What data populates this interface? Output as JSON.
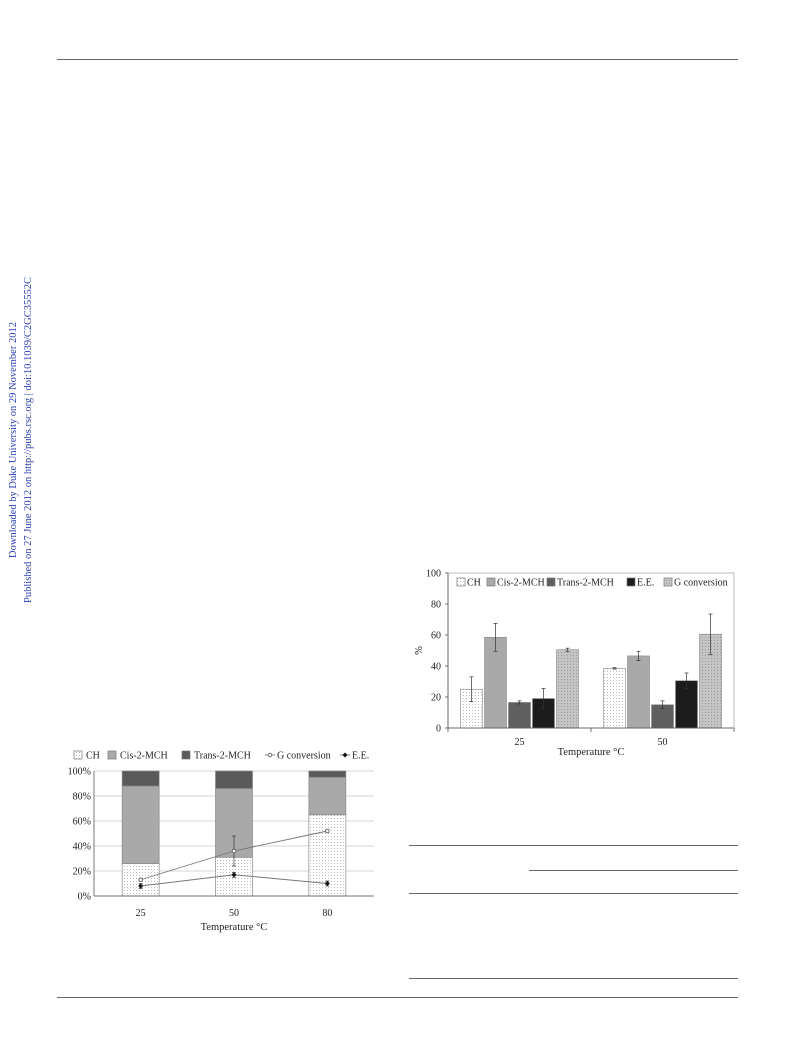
{
  "side_note": {
    "line1": "Downloaded by Duke University on 29 November 2012",
    "line2": "Published on 27 June 2012 on http://pubs.rsc.org | doi:10.1039/C2GC35552C"
  },
  "chart_data": [
    {
      "type": "bar",
      "subtype": "stacked-percent with line overlay",
      "categories": [
        "25",
        "50",
        "80"
      ],
      "xlabel": "Temperature °C",
      "ylabel": "",
      "ylim": [
        0,
        100
      ],
      "yticks": [
        "0%",
        "20%",
        "40%",
        "60%",
        "80%",
        "100%"
      ],
      "grid": true,
      "legend_position": "top",
      "legend": [
        "CH",
        "Cis-2-MCH",
        "Trans-2-MCH",
        "G conversion",
        "E.E."
      ],
      "series": [
        {
          "name": "CH",
          "kind": "bar",
          "values": [
            26,
            31,
            65
          ]
        },
        {
          "name": "Cis-2-MCH",
          "kind": "bar",
          "values": [
            62,
            55,
            30
          ]
        },
        {
          "name": "Trans-2-MCH",
          "kind": "bar",
          "values": [
            12,
            14,
            5
          ]
        },
        {
          "name": "G conversion",
          "kind": "line",
          "values": [
            13,
            36,
            52
          ],
          "errors": [
            1,
            12,
            1
          ]
        },
        {
          "name": "E.E.",
          "kind": "line",
          "values": [
            8,
            17,
            10
          ],
          "errors": [
            2,
            2,
            2
          ]
        }
      ]
    },
    {
      "type": "bar",
      "subtype": "grouped with error bars",
      "categories": [
        "25",
        "50"
      ],
      "xlabel": "Temperature °C",
      "ylabel": "%",
      "ylim": [
        0,
        100
      ],
      "yticks": [
        "0",
        "20",
        "40",
        "60",
        "80",
        "100"
      ],
      "grid": false,
      "legend_position": "top",
      "legend": [
        "CH",
        "Cis-2-MCH",
        "Trans-2-MCH",
        "E.E.",
        "G conversion"
      ],
      "series": [
        {
          "name": "CH",
          "values": [
            25,
            38.5
          ],
          "errors": [
            8,
            0.5
          ]
        },
        {
          "name": "Cis-2-MCH",
          "values": [
            58.5,
            46.5
          ],
          "errors": [
            9,
            3
          ]
        },
        {
          "name": "Trans-2-MCH",
          "values": [
            16.5,
            15
          ],
          "errors": [
            1,
            2.5
          ]
        },
        {
          "name": "E.E.",
          "values": [
            19,
            30.5
          ],
          "errors": [
            6.5,
            5
          ]
        },
        {
          "name": "G conversion",
          "values": [
            50.5,
            60.5
          ],
          "errors": [
            1,
            13
          ]
        }
      ]
    }
  ]
}
